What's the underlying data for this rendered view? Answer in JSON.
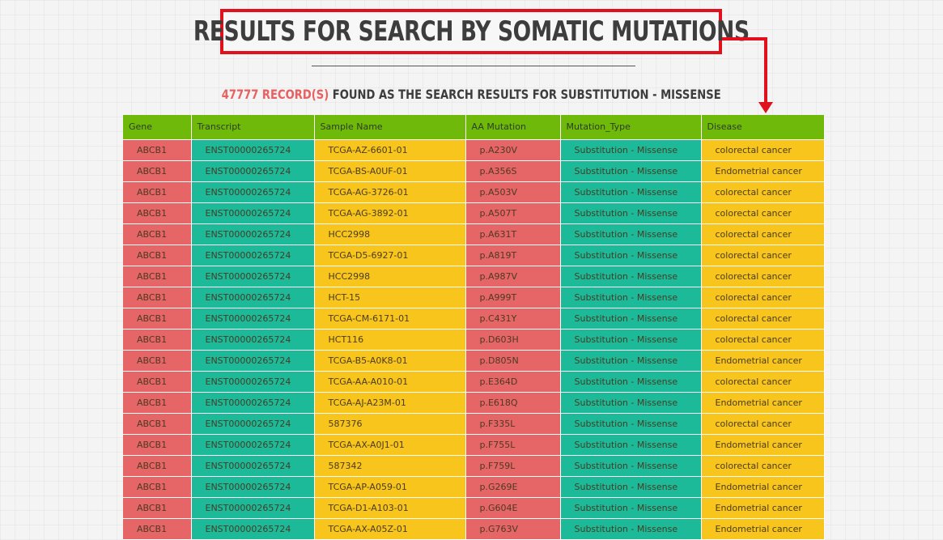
{
  "page": {
    "title": "RESULTS FOR SEARCH BY SOMATIC MUTATIONS",
    "result_count": "47777 RECORD(S)",
    "result_text": " FOUND AS THE SEARCH RESULTS FOR SUBSTITUTION - MISSENSE"
  },
  "colors": {
    "header_green": "#6fb90a",
    "red": "#e66566",
    "teal": "#1dba9a",
    "yellow": "#f8c51c",
    "annotation_red": "#e0101c"
  },
  "table": {
    "columns": [
      "Gene",
      "Transcript",
      "Sample Name",
      "AA Mutation",
      "Mutation_Type",
      "Disease"
    ],
    "rows": [
      [
        "ABCB1",
        "ENST00000265724",
        "TCGA-AZ-6601-01",
        "p.A230V",
        "Substitution - Missense",
        "colorectal cancer"
      ],
      [
        "ABCB1",
        "ENST00000265724",
        "TCGA-BS-A0UF-01",
        "p.A356S",
        "Substitution - Missense",
        "Endometrial cancer"
      ],
      [
        "ABCB1",
        "ENST00000265724",
        "TCGA-AG-3726-01",
        "p.A503V",
        "Substitution - Missense",
        "colorectal cancer"
      ],
      [
        "ABCB1",
        "ENST00000265724",
        "TCGA-AG-3892-01",
        "p.A507T",
        "Substitution - Missense",
        "colorectal cancer"
      ],
      [
        "ABCB1",
        "ENST00000265724",
        "HCC2998",
        "p.A631T",
        "Substitution - Missense",
        "colorectal cancer"
      ],
      [
        "ABCB1",
        "ENST00000265724",
        "TCGA-D5-6927-01",
        "p.A819T",
        "Substitution - Missense",
        "colorectal cancer"
      ],
      [
        "ABCB1",
        "ENST00000265724",
        "HCC2998",
        "p.A987V",
        "Substitution - Missense",
        "colorectal cancer"
      ],
      [
        "ABCB1",
        "ENST00000265724",
        "HCT-15",
        "p.A999T",
        "Substitution - Missense",
        "colorectal cancer"
      ],
      [
        "ABCB1",
        "ENST00000265724",
        "TCGA-CM-6171-01",
        "p.C431Y",
        "Substitution - Missense",
        "colorectal cancer"
      ],
      [
        "ABCB1",
        "ENST00000265724",
        "HCT116",
        "p.D603H",
        "Substitution - Missense",
        "colorectal cancer"
      ],
      [
        "ABCB1",
        "ENST00000265724",
        "TCGA-B5-A0K8-01",
        "p.D805N",
        "Substitution - Missense",
        "Endometrial cancer"
      ],
      [
        "ABCB1",
        "ENST00000265724",
        "TCGA-AA-A010-01",
        "p.E364D",
        "Substitution - Missense",
        "colorectal cancer"
      ],
      [
        "ABCB1",
        "ENST00000265724",
        "TCGA-AJ-A23M-01",
        "p.E618Q",
        "Substitution - Missense",
        "Endometrial cancer"
      ],
      [
        "ABCB1",
        "ENST00000265724",
        "587376",
        "p.F335L",
        "Substitution - Missense",
        "colorectal cancer"
      ],
      [
        "ABCB1",
        "ENST00000265724",
        "TCGA-AX-A0J1-01",
        "p.F755L",
        "Substitution - Missense",
        "Endometrial cancer"
      ],
      [
        "ABCB1",
        "ENST00000265724",
        "587342",
        "p.F759L",
        "Substitution - Missense",
        "colorectal cancer"
      ],
      [
        "ABCB1",
        "ENST00000265724",
        "TCGA-AP-A059-01",
        "p.G269E",
        "Substitution - Missense",
        "Endometrial cancer"
      ],
      [
        "ABCB1",
        "ENST00000265724",
        "TCGA-D1-A103-01",
        "p.G604E",
        "Substitution - Missense",
        "Endometrial cancer"
      ],
      [
        "ABCB1",
        "ENST00000265724",
        "TCGA-AX-A05Z-01",
        "p.G763V",
        "Substitution - Missense",
        "Endometrial cancer"
      ]
    ]
  }
}
